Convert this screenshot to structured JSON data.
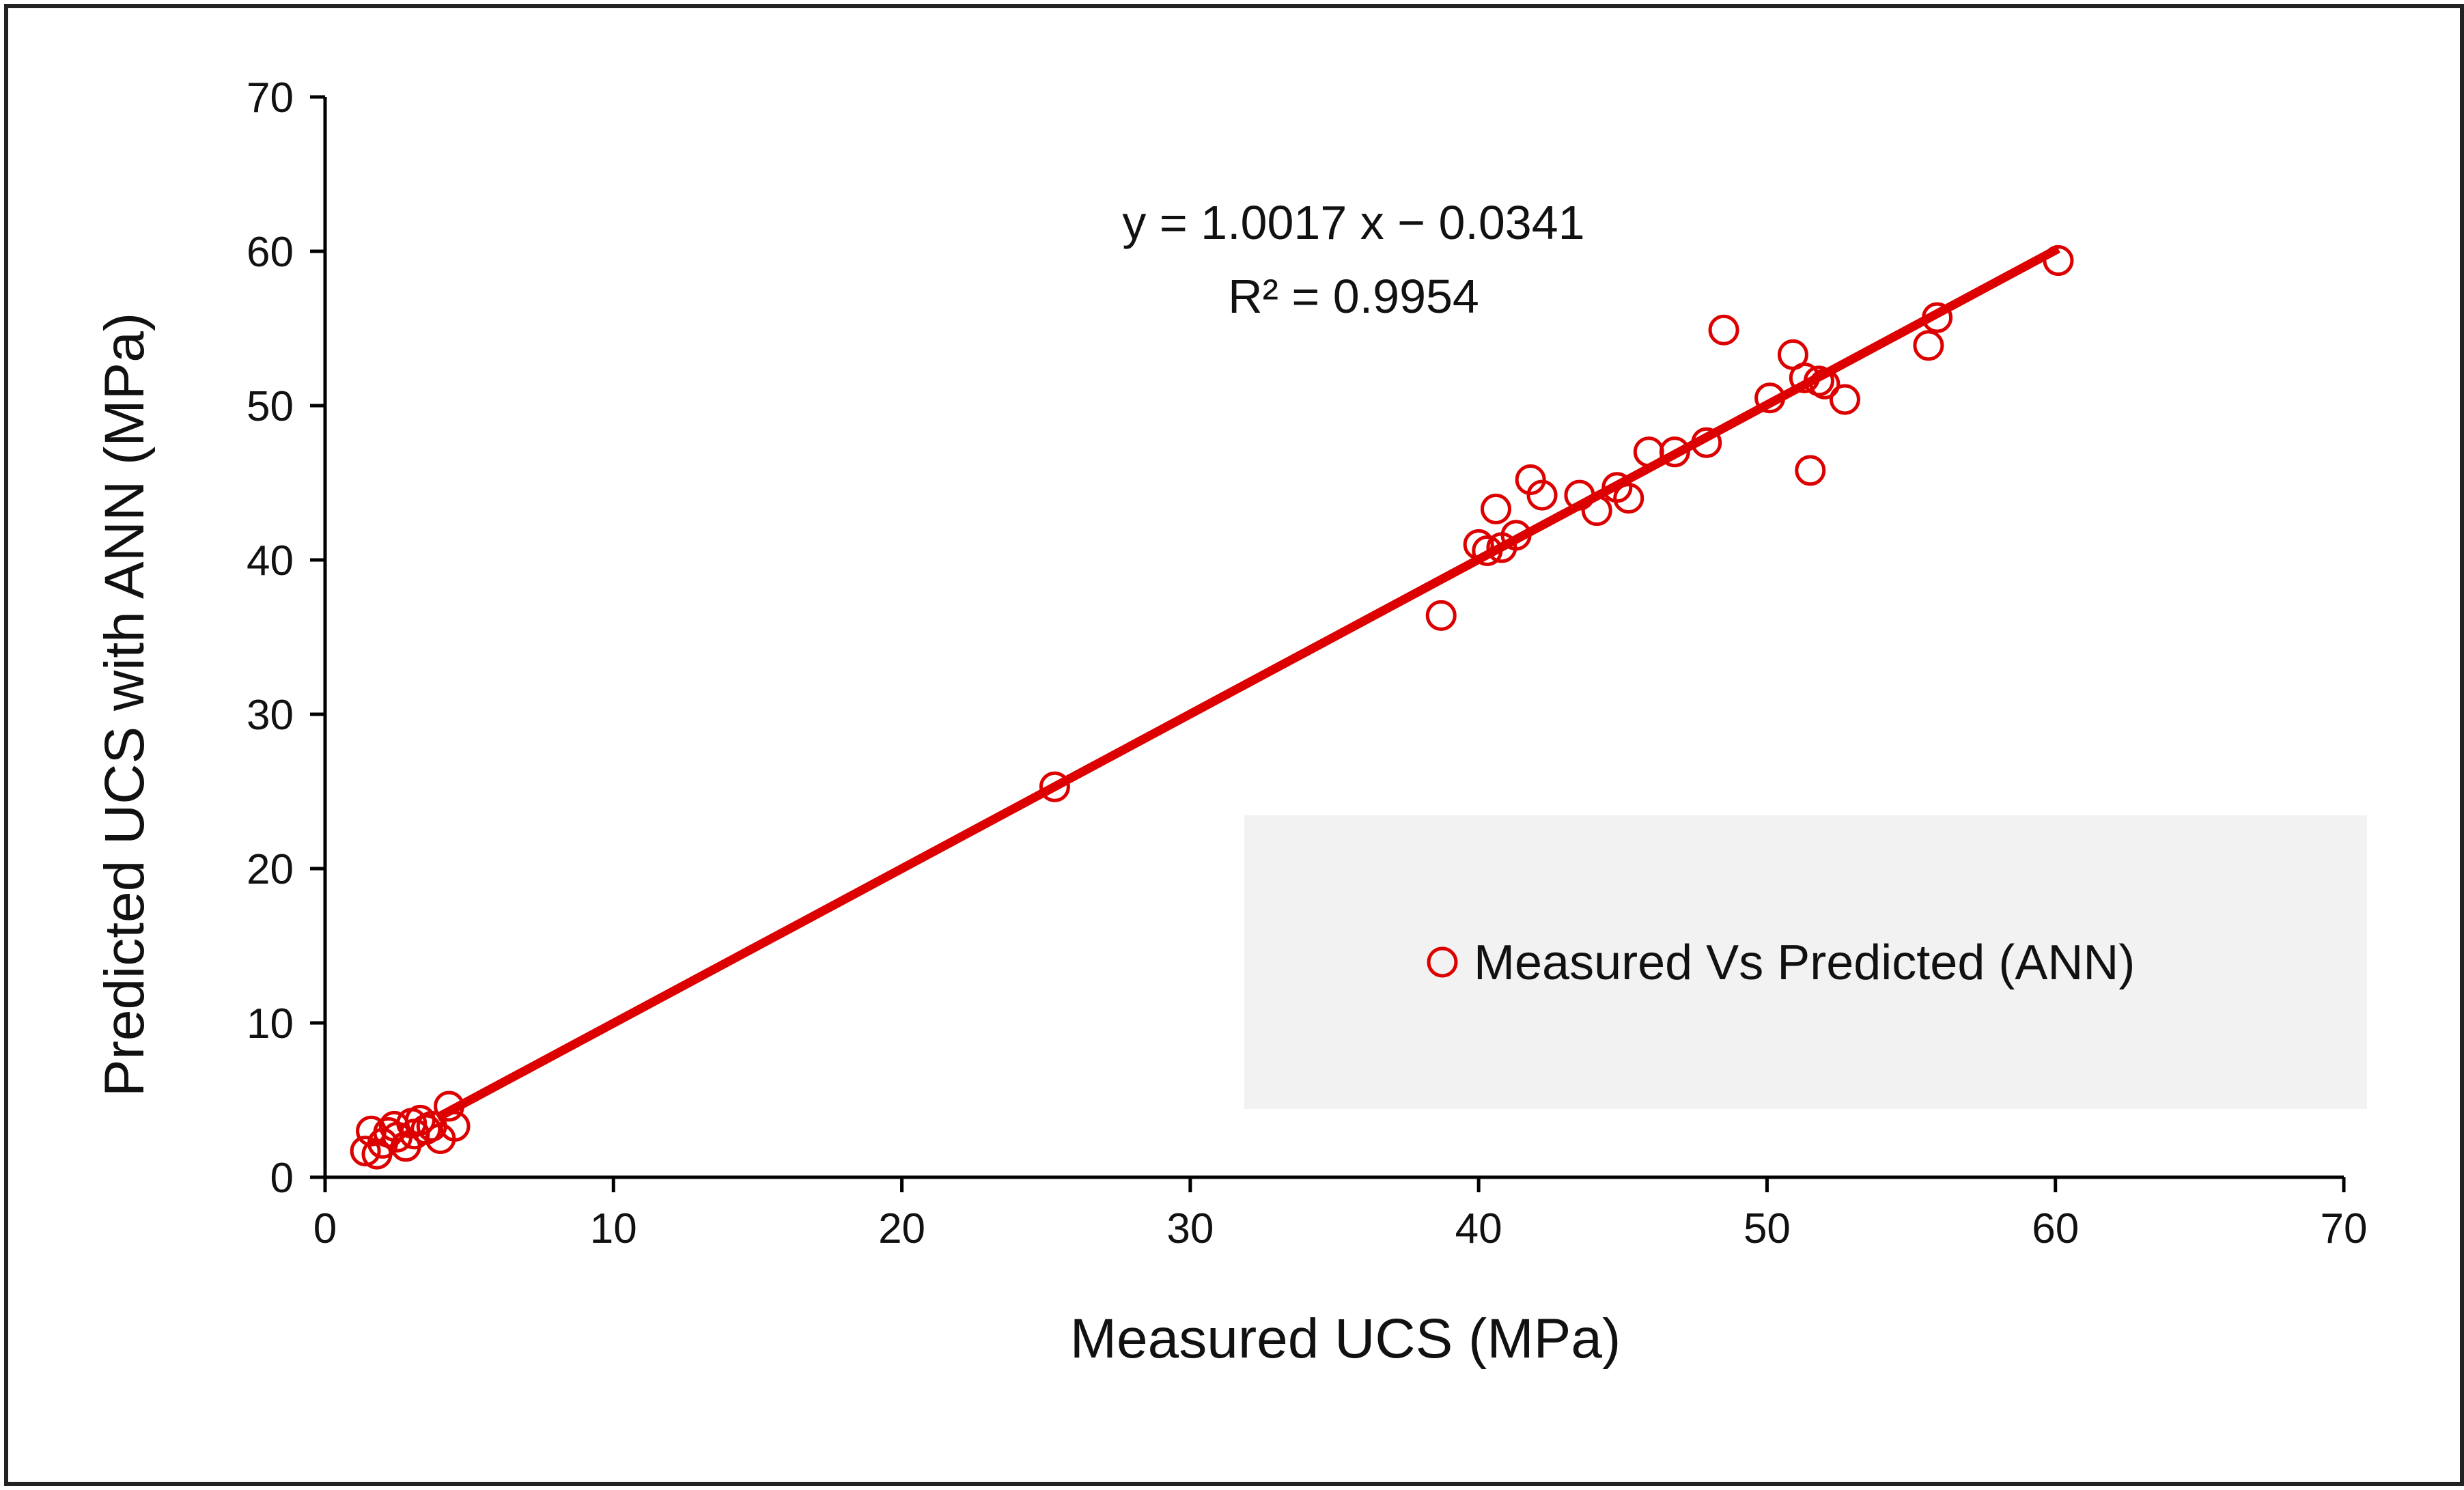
{
  "chart_data": {
    "type": "scatter",
    "title": "",
    "xlabel": "Measured UCS (MPa)",
    "ylabel": "Predicted UCS with ANN (MPa)",
    "xlim": [
      0,
      70
    ],
    "ylim": [
      0,
      70
    ],
    "xticks": [
      0,
      10,
      20,
      30,
      40,
      50,
      60,
      70
    ],
    "yticks": [
      0,
      10,
      20,
      30,
      40,
      50,
      60,
      70
    ],
    "grid": false,
    "legend": {
      "label": "Measured Vs Predicted (ANN)",
      "position": "bottom-right"
    },
    "colors": {
      "series": "#dd0000",
      "legend_bg": "#f2f2f2",
      "axis": "#000000"
    },
    "series": [
      {
        "name": "Measured Vs Predicted (ANN)",
        "x": [
          1.4,
          1.6,
          1.8,
          2.0,
          2.2,
          2.4,
          2.5,
          2.8,
          3.0,
          3.1,
          3.3,
          3.5,
          3.7,
          4.0,
          4.3,
          4.5,
          25.3,
          38.7,
          40.0,
          40.3,
          40.6,
          40.8,
          41.3,
          41.8,
          42.2,
          43.5,
          44.1,
          44.8,
          45.2,
          45.9,
          46.8,
          47.9,
          50.1,
          50.9,
          51.3,
          51.5,
          51.8,
          52.0,
          52.7,
          55.6,
          55.9,
          60.1,
          48.5
        ],
        "y": [
          1.7,
          3.0,
          1.5,
          2.2,
          2.9,
          3.3,
          2.6,
          2.0,
          3.5,
          2.8,
          3.7,
          3.1,
          3.3,
          2.5,
          4.6,
          3.3,
          25.3,
          36.4,
          41.0,
          40.6,
          43.3,
          40.8,
          41.6,
          45.2,
          44.2,
          44.2,
          43.2,
          44.7,
          44.0,
          47.0,
          47.0,
          47.6,
          50.5,
          53.3,
          51.8,
          45.8,
          51.6,
          51.4,
          50.4,
          53.9,
          55.7,
          59.4,
          54.9
        ]
      }
    ],
    "trendline": {
      "slope": 1.0017,
      "intercept": -0.0341,
      "x_range": [
        3.9,
        60.1
      ],
      "equation": "y = 1.0017 x − 0.0341",
      "r_squared": "R² = 0.9954"
    }
  }
}
